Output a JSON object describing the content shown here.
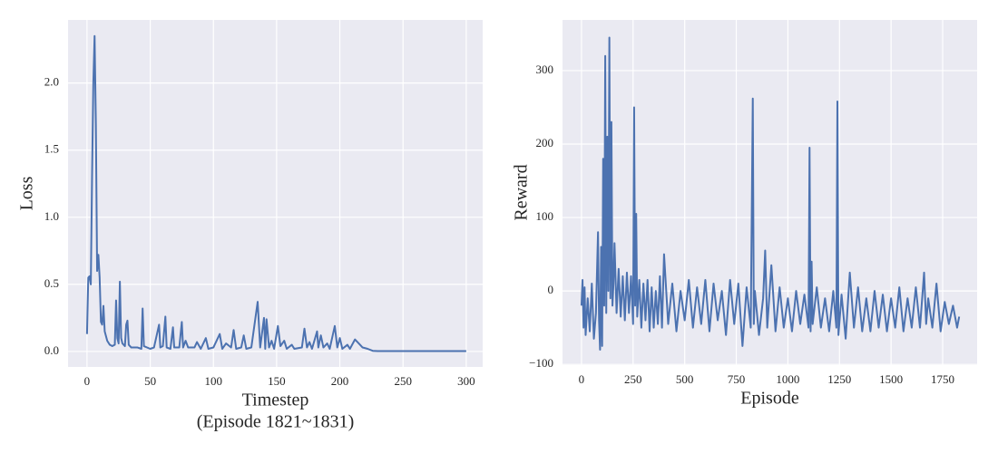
{
  "chart_data": [
    {
      "type": "line",
      "xlabel": [
        "Timestep",
        "(Episode 1821~1831)"
      ],
      "ylabel": "Loss",
      "color": "#4c72b0",
      "grid": true,
      "xlim": [
        -15,
        313
      ],
      "ylim": [
        -0.115,
        2.47
      ],
      "xticks": [
        0,
        50,
        100,
        150,
        200,
        250,
        300
      ],
      "yticks": [
        {
          "value": 0,
          "label": "0.0"
        },
        0.5,
        {
          "value": 1,
          "label": "1.0"
        },
        1.5,
        {
          "value": 2,
          "label": "2.0"
        }
      ],
      "x": [
        0,
        1,
        2,
        3,
        4,
        5,
        6,
        7,
        8,
        9,
        10,
        11,
        12,
        13,
        14,
        16,
        18,
        20,
        22,
        23,
        24,
        25,
        26,
        27,
        28,
        30,
        31,
        32,
        33,
        35,
        40,
        43,
        44,
        45,
        50,
        53,
        57,
        58,
        60,
        62,
        63,
        66,
        68,
        69,
        73,
        75,
        76,
        78,
        80,
        85,
        87,
        90,
        94,
        96,
        100,
        105,
        107,
        110,
        114,
        116,
        118,
        122,
        124,
        126,
        130,
        135,
        137,
        140,
        141,
        142,
        144,
        146,
        148,
        151,
        153,
        156,
        158,
        162,
        164,
        170,
        172,
        174,
        176,
        178,
        182,
        183,
        185,
        187,
        190,
        192,
        196,
        198,
        200,
        202,
        206,
        208,
        212,
        215,
        218,
        222,
        226,
        230,
        300
      ],
      "values": [
        0.13,
        0.55,
        0.56,
        0.5,
        1.3,
        2.0,
        2.35,
        1.7,
        0.6,
        0.72,
        0.55,
        0.22,
        0.2,
        0.34,
        0.15,
        0.08,
        0.05,
        0.04,
        0.05,
        0.38,
        0.1,
        0.06,
        0.52,
        0.1,
        0.06,
        0.04,
        0.2,
        0.23,
        0.05,
        0.03,
        0.03,
        0.02,
        0.32,
        0.04,
        0.02,
        0.03,
        0.2,
        0.03,
        0.04,
        0.26,
        0.03,
        0.02,
        0.18,
        0.03,
        0.03,
        0.22,
        0.03,
        0.08,
        0.03,
        0.03,
        0.07,
        0.02,
        0.1,
        0.02,
        0.03,
        0.13,
        0.02,
        0.06,
        0.03,
        0.16,
        0.02,
        0.03,
        0.12,
        0.02,
        0.03,
        0.37,
        0.03,
        0.25,
        0.02,
        0.24,
        0.03,
        0.08,
        0.02,
        0.19,
        0.04,
        0.08,
        0.02,
        0.05,
        0.02,
        0.03,
        0.17,
        0.03,
        0.07,
        0.02,
        0.15,
        0.03,
        0.12,
        0.03,
        0.06,
        0.02,
        0.19,
        0.03,
        0.1,
        0.02,
        0.05,
        0.02,
        0.09,
        0.06,
        0.03,
        0.02,
        0.005,
        0.003,
        0.003
      ]
    },
    {
      "type": "line",
      "xlabel": [
        "Episode"
      ],
      "ylabel": "Reward",
      "color": "#4c72b0",
      "grid": true,
      "xlim": [
        -92,
        1917
      ],
      "ylim": [
        -101,
        369
      ],
      "xticks": [
        0,
        250,
        500,
        750,
        1000,
        1250,
        1500,
        1750
      ],
      "yticks": [
        {
          "value": -100,
          "label": "−100"
        },
        0,
        100,
        200,
        300
      ],
      "x": [
        0,
        5,
        10,
        15,
        20,
        30,
        40,
        50,
        60,
        70,
        80,
        85,
        90,
        95,
        100,
        105,
        110,
        115,
        120,
        125,
        130,
        135,
        140,
        145,
        150,
        155,
        160,
        170,
        180,
        190,
        200,
        210,
        220,
        230,
        240,
        250,
        255,
        260,
        265,
        270,
        280,
        290,
        300,
        310,
        320,
        330,
        340,
        350,
        360,
        370,
        380,
        390,
        400,
        420,
        440,
        460,
        480,
        500,
        520,
        540,
        560,
        580,
        600,
        620,
        640,
        660,
        680,
        700,
        720,
        740,
        760,
        780,
        800,
        820,
        830,
        835,
        840,
        860,
        880,
        890,
        900,
        920,
        940,
        960,
        980,
        1000,
        1020,
        1040,
        1060,
        1080,
        1100,
        1105,
        1110,
        1115,
        1120,
        1140,
        1160,
        1180,
        1200,
        1220,
        1235,
        1240,
        1245,
        1260,
        1280,
        1300,
        1320,
        1340,
        1360,
        1380,
        1400,
        1420,
        1440,
        1460,
        1480,
        1500,
        1520,
        1540,
        1560,
        1580,
        1600,
        1620,
        1640,
        1660,
        1670,
        1680,
        1700,
        1720,
        1740,
        1760,
        1780,
        1800,
        1820,
        1830
      ],
      "values": [
        -20,
        15,
        -50,
        5,
        -60,
        -10,
        -55,
        10,
        -65,
        -30,
        80,
        -40,
        -80,
        60,
        -75,
        180,
        -20,
        320,
        -30,
        210,
        0,
        345,
        -10,
        230,
        -20,
        10,
        65,
        -30,
        30,
        -35,
        20,
        -40,
        25,
        -30,
        20,
        -45,
        250,
        -20,
        105,
        -35,
        15,
        -50,
        10,
        -40,
        15,
        -55,
        5,
        -50,
        0,
        -45,
        20,
        -50,
        50,
        -45,
        10,
        -55,
        0,
        -40,
        15,
        -50,
        5,
        -45,
        15,
        -55,
        10,
        -40,
        0,
        -60,
        15,
        -45,
        10,
        -75,
        5,
        -50,
        262,
        -45,
        0,
        -60,
        -10,
        55,
        -50,
        35,
        -55,
        5,
        -50,
        -10,
        -55,
        0,
        -45,
        -5,
        -50,
        195,
        -55,
        40,
        -45,
        5,
        -50,
        -10,
        -55,
        0,
        -50,
        258,
        -60,
        -5,
        -65,
        25,
        -50,
        5,
        -55,
        -10,
        -55,
        0,
        -50,
        -5,
        -55,
        -10,
        -50,
        5,
        -55,
        -10,
        -50,
        5,
        -50,
        25,
        -45,
        -10,
        -50,
        10,
        -55,
        -15,
        -45,
        -20,
        -50,
        -35
      ]
    }
  ]
}
